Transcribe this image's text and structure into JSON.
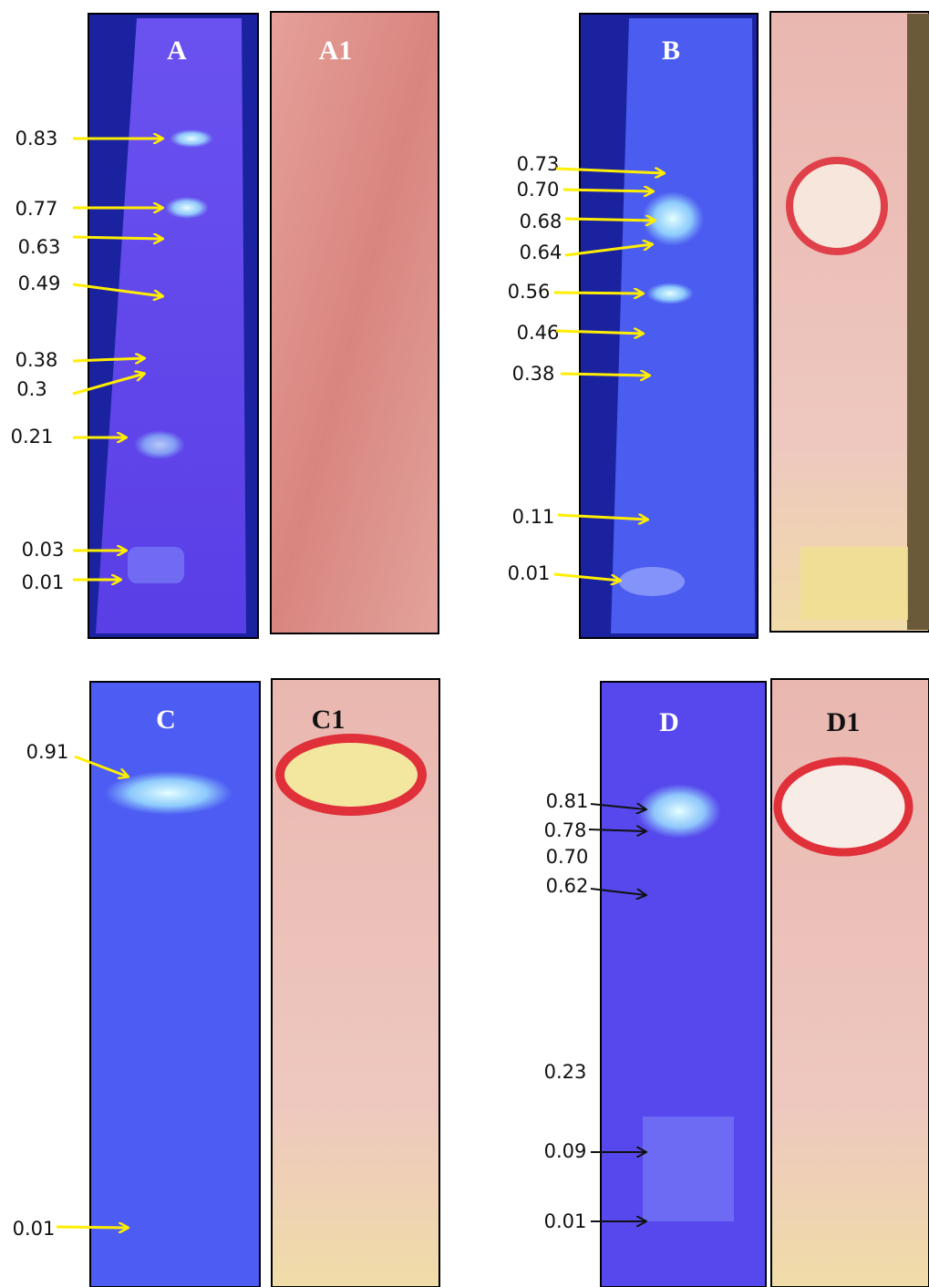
{
  "panels": [
    {
      "label": "A",
      "stain_label": "A1",
      "rf_values": [
        "0.83",
        "0.77",
        "0.63",
        "0.49",
        "0.38",
        "0.3",
        "0.21",
        "0.03",
        "0.01"
      ]
    },
    {
      "label": "B",
      "rf_values": [
        "0.73",
        "0.70",
        "0.68",
        "0.64",
        "0.56",
        "0.46",
        "0.38",
        "0.11",
        "0.01"
      ]
    },
    {
      "label": "C",
      "stain_label": "C1",
      "rf_values": [
        "0.91",
        "0.01"
      ]
    },
    {
      "label": "D",
      "stain_label": "D1",
      "rf_values": [
        "0.81",
        "0.78",
        "0.70",
        "0.62",
        "0.23",
        "0.09",
        "0.01"
      ]
    }
  ]
}
